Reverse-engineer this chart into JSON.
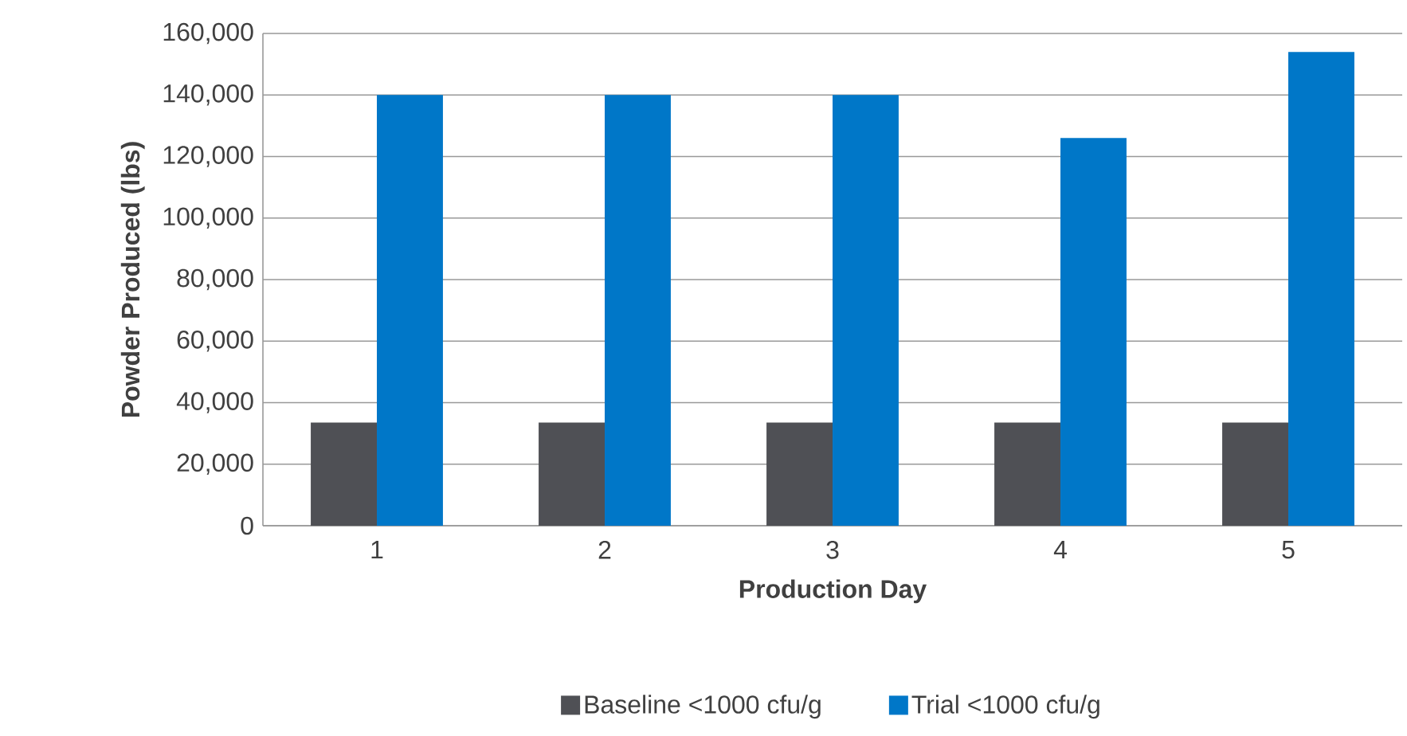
{
  "chart_data": {
    "type": "bar",
    "xlabel": "Production Day",
    "ylabel": "Powder Produced (lbs)",
    "categories": [
      "1",
      "2",
      "3",
      "4",
      "5"
    ],
    "series": [
      {
        "name": "Baseline <1000 cfu/g",
        "color": "#4f5055",
        "values": [
          33500,
          33500,
          33500,
          33500,
          33500
        ]
      },
      {
        "name": "Trial <1000 cfu/g",
        "color": "#0077c8",
        "values": [
          140000,
          140000,
          140000,
          126000,
          154000
        ]
      }
    ],
    "ylim": [
      0,
      160000
    ],
    "yticks": [
      {
        "value": 0,
        "label": "0"
      },
      {
        "value": 20000,
        "label": "20,000"
      },
      {
        "value": 40000,
        "label": "40,000"
      },
      {
        "value": 60000,
        "label": "60,000"
      },
      {
        "value": 80000,
        "label": "80,000"
      },
      {
        "value": 100000,
        "label": "100,000"
      },
      {
        "value": 120000,
        "label": "120,000"
      },
      {
        "value": 140000,
        "label": "140,000"
      },
      {
        "value": 160000,
        "label": "160,000"
      }
    ],
    "grid": "y",
    "legend": "bottom"
  }
}
